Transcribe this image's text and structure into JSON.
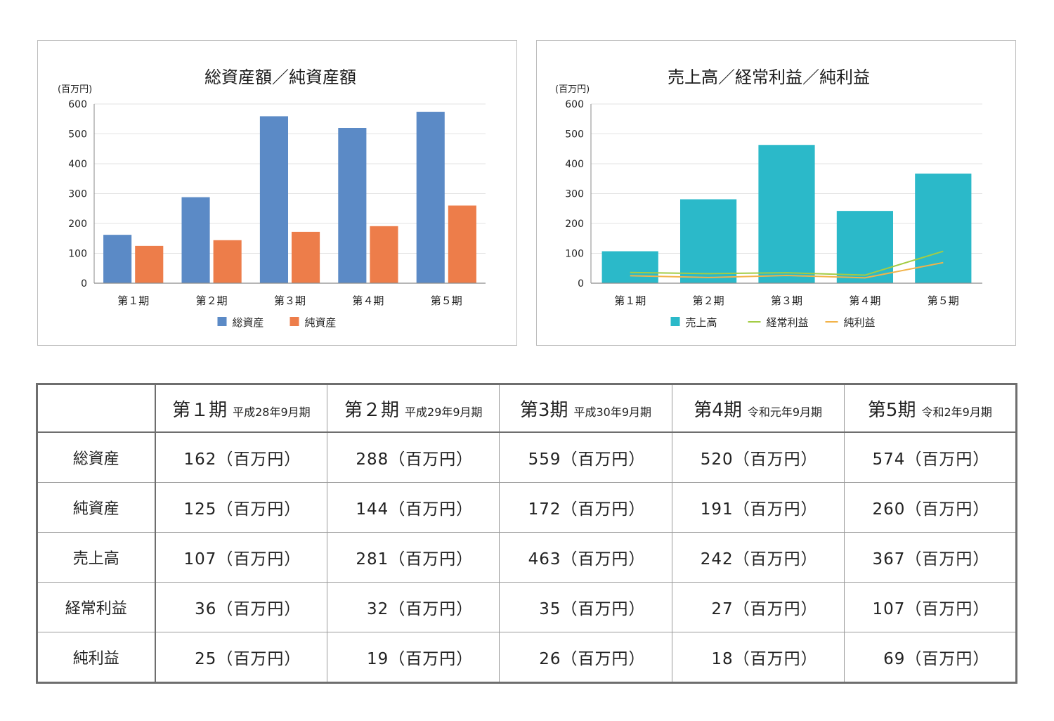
{
  "charts": {
    "left": {
      "title": "総資産額／純資産額",
      "unit": "(百万円)"
    },
    "right": {
      "title": "売上高／経常利益／純利益",
      "unit": "(百万円)"
    }
  },
  "chart_data": [
    {
      "type": "bar",
      "title": "総資産額／純資産額",
      "ylabel": "(百万円)",
      "ylim": [
        0,
        600
      ],
      "yticks": [
        "0",
        "100",
        "200",
        "300",
        "400",
        "500",
        "600"
      ],
      "grid": true,
      "legend_position": "bottom",
      "categories": [
        "第１期",
        "第２期",
        "第３期",
        "第４期",
        "第５期"
      ],
      "series": [
        {
          "name": "総資産",
          "values": [
            162,
            288,
            559,
            520,
            574
          ],
          "color": "#5b8ac6"
        },
        {
          "name": "純資産",
          "values": [
            125,
            144,
            172,
            191,
            260
          ],
          "color": "#ed7d4a"
        }
      ]
    },
    {
      "type": "bar",
      "title": "売上高／経常利益／純利益",
      "ylabel": "(百万円)",
      "ylim": [
        0,
        600
      ],
      "yticks": [
        "0",
        "100",
        "200",
        "300",
        "400",
        "500",
        "600"
      ],
      "grid": true,
      "legend_position": "bottom",
      "categories": [
        "第１期",
        "第２期",
        "第３期",
        "第４期",
        "第５期"
      ],
      "series": [
        {
          "name": "売上高",
          "kind": "bar",
          "values": [
            107,
            281,
            463,
            242,
            367
          ],
          "color": "#2bb9c9"
        },
        {
          "name": "経常利益",
          "kind": "line",
          "values": [
            36,
            32,
            35,
            27,
            107
          ],
          "color": "#a3cc45"
        },
        {
          "name": "純利益",
          "kind": "line",
          "values": [
            25,
            19,
            26,
            18,
            69
          ],
          "color": "#f2b349"
        }
      ]
    }
  ],
  "table": {
    "corner": "",
    "periods": [
      {
        "main": "第１期",
        "sub": "平成28年9月期"
      },
      {
        "main": "第２期",
        "sub": "平成29年9月期"
      },
      {
        "main": "第3期",
        "sub": "平成30年9月期"
      },
      {
        "main": "第4期",
        "sub": "令和元年9月期"
      },
      {
        "main": "第5期",
        "sub": "令和2年9月期"
      }
    ],
    "rows": [
      {
        "label": "総資産",
        "values": [
          "162（百万円）",
          "288（百万円）",
          "559（百万円）",
          "520（百万円）",
          "574（百万円）"
        ]
      },
      {
        "label": "純資産",
        "values": [
          "125（百万円）",
          "144（百万円）",
          "172（百万円）",
          "191（百万円）",
          "260（百万円）"
        ]
      },
      {
        "label": "売上高",
        "values": [
          "107（百万円）",
          "281（百万円）",
          "463（百万円）",
          "242（百万円）",
          "367（百万円）"
        ]
      },
      {
        "label": "経常利益",
        "values": [
          "36（百万円）",
          "32（百万円）",
          "35（百万円）",
          "27（百万円）",
          "107（百万円）"
        ]
      },
      {
        "label": "純利益",
        "values": [
          "25（百万円）",
          "19（百万円）",
          "26（百万円）",
          "18（百万円）",
          "69（百万円）"
        ]
      }
    ]
  }
}
